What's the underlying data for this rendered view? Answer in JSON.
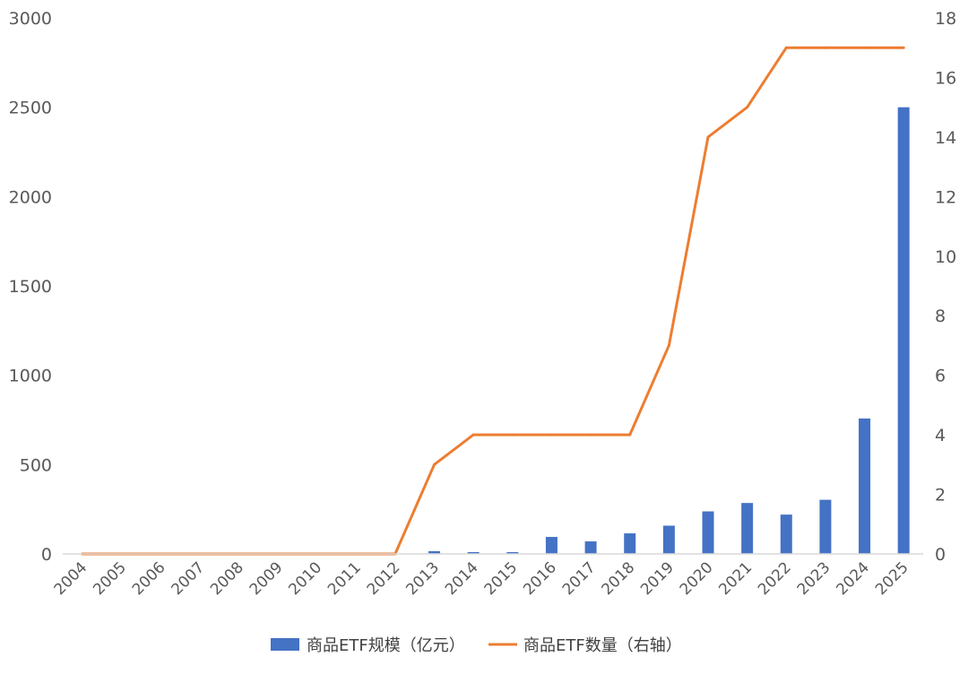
{
  "chart_data": {
    "type": "bar",
    "categories": [
      "2004",
      "2005",
      "2006",
      "2007",
      "2008",
      "2009",
      "2010",
      "2011",
      "2012",
      "2013",
      "2014",
      "2015",
      "2016",
      "2017",
      "2018",
      "2019",
      "2020",
      "2021",
      "2022",
      "2023",
      "2024",
      "2025"
    ],
    "series": [
      {
        "name": "商品ETF规模（亿元）",
        "type": "bar",
        "axis": "left",
        "color": "#4472C4",
        "values": [
          0,
          0,
          0,
          0,
          0,
          0,
          0,
          0,
          0,
          15,
          10,
          10,
          95,
          70,
          115,
          158,
          238,
          285,
          220,
          303,
          758,
          2500
        ]
      },
      {
        "name": "商品ETF数量（右轴）",
        "type": "line",
        "axis": "right",
        "color": "#ED7D31",
        "values": [
          0,
          0,
          0,
          0,
          0,
          0,
          0,
          0,
          0,
          3,
          4,
          4,
          4,
          4,
          4,
          7,
          14,
          15,
          17,
          17,
          17,
          17
        ]
      }
    ],
    "y_left": {
      "ylim": [
        0,
        3000
      ],
      "ticks": [
        0,
        500,
        1000,
        1500,
        2000,
        2500,
        3000
      ]
    },
    "y_right": {
      "ylim": [
        0,
        18
      ],
      "ticks": [
        0,
        2,
        4,
        6,
        8,
        10,
        12,
        14,
        16,
        18
      ]
    },
    "grid": false,
    "legend_position": "bottom"
  }
}
